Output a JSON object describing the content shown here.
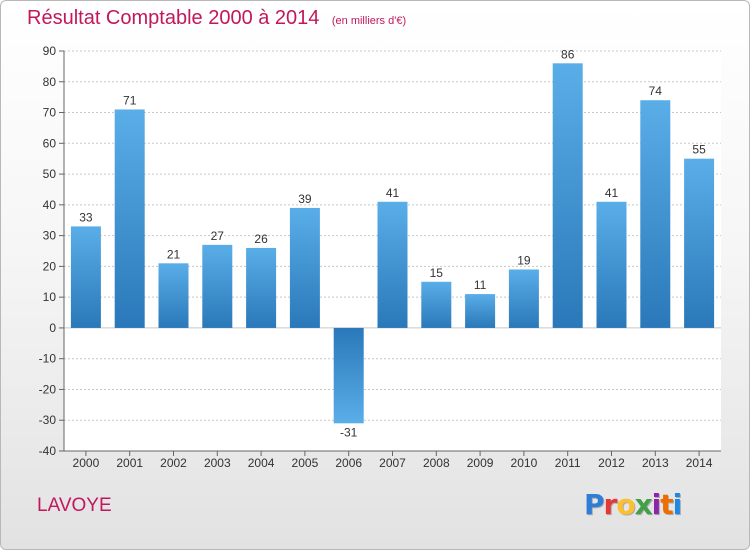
{
  "header": {
    "title": "Résultat Comptable 2000 à 2014",
    "subtitle": "(en milliers d'€)"
  },
  "footer": {
    "town": "LAVOYE",
    "logo_letters": [
      "P",
      "r",
      "o",
      "x",
      "i",
      "t",
      "i"
    ],
    "logo_colors": [
      "#2e7dd7",
      "#e53935",
      "#fbc02d",
      "#43a047",
      "#8e24aa",
      "#ef6c00",
      "#1e88e5"
    ]
  },
  "colors": {
    "title": "#c2185b",
    "bar_light": "#5aaee8",
    "bar_dark": "#2a78b9",
    "grid": "#c8c8c8"
  },
  "chart_data": {
    "type": "bar",
    "title": "Résultat Comptable 2000 à 2014",
    "subtitle": "(en milliers d'€)",
    "categories": [
      "2000",
      "2001",
      "2002",
      "2003",
      "2004",
      "2005",
      "2006",
      "2007",
      "2008",
      "2009",
      "2010",
      "2011",
      "2012",
      "2013",
      "2014"
    ],
    "values": [
      33,
      71,
      21,
      27,
      26,
      39,
      -31,
      41,
      15,
      11,
      19,
      86,
      41,
      74,
      55
    ],
    "ylim": [
      -40,
      90
    ],
    "yticks": [
      90,
      80,
      70,
      60,
      50,
      40,
      30,
      20,
      10,
      0,
      -10,
      -20,
      -30,
      -40
    ],
    "grid": true,
    "legend": "none"
  }
}
